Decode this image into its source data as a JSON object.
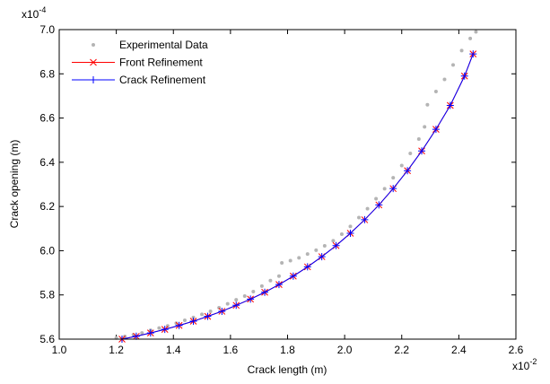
{
  "chart_data": {
    "type": "line",
    "x_label": "Crack length (m)",
    "y_label": "Crack opening (m)",
    "x_multiplier": {
      "base": "x10",
      "exponent": "-2"
    },
    "y_multiplier": {
      "base": "x10",
      "exponent": "-4"
    },
    "xlim": [
      1.0,
      2.6
    ],
    "ylim": [
      5.6,
      7.0
    ],
    "xticks": [
      {
        "value": 1,
        "label": "1.0"
      },
      1.2,
      1.4,
      1.6,
      1.8,
      {
        "value": 2,
        "label": "2.0"
      },
      2.2,
      2.4,
      2.6
    ],
    "yticks": [
      5.6,
      5.8,
      {
        "value": 6,
        "label": "6.0"
      },
      6.2,
      6.4,
      6.6,
      6.8,
      {
        "value": 7,
        "label": "7.0"
      }
    ],
    "legend": "upper left",
    "series": [
      {
        "name": "Experimental Data",
        "color": "#b4b4b4",
        "marker": "dot",
        "line": false,
        "x": [
          1.2,
          1.23,
          1.26,
          1.29,
          1.32,
          1.35,
          1.38,
          1.41,
          1.44,
          1.47,
          1.5,
          1.53,
          1.56,
          1.59,
          1.62,
          1.65,
          1.68,
          1.71,
          1.74,
          1.77,
          1.78,
          1.81,
          1.84,
          1.87,
          1.9,
          1.93,
          1.96,
          1.99,
          2.02,
          2.05,
          2.08,
          2.11,
          2.14,
          2.17,
          2.2,
          2.23,
          2.26,
          2.28,
          2.29,
          2.32,
          2.35,
          2.38,
          2.41,
          2.44,
          2.46
        ],
        "values": [
          5.605,
          5.612,
          5.62,
          5.628,
          5.64,
          5.65,
          5.66,
          5.672,
          5.685,
          5.698,
          5.712,
          5.726,
          5.742,
          5.76,
          5.778,
          5.795,
          5.815,
          5.84,
          5.865,
          5.885,
          5.945,
          5.955,
          5.968,
          5.985,
          6.002,
          6.022,
          6.045,
          6.075,
          6.11,
          6.15,
          6.19,
          6.235,
          6.28,
          6.33,
          6.385,
          6.44,
          6.505,
          6.56,
          6.66,
          6.72,
          6.775,
          6.84,
          6.905,
          6.96,
          6.99
        ]
      },
      {
        "name": "Front Refinement",
        "color": "#ff0000",
        "marker": "x",
        "line": true,
        "x": [
          1.22,
          1.27,
          1.32,
          1.37,
          1.42,
          1.47,
          1.52,
          1.57,
          1.62,
          1.67,
          1.72,
          1.77,
          1.82,
          1.87,
          1.92,
          1.97,
          2.02,
          2.07,
          2.12,
          2.17,
          2.22,
          2.27,
          2.32,
          2.37,
          2.42,
          2.45
        ],
        "values": [
          5.6,
          5.613,
          5.628,
          5.644,
          5.662,
          5.681,
          5.703,
          5.726,
          5.753,
          5.781,
          5.812,
          5.847,
          5.885,
          5.927,
          5.973,
          6.023,
          6.079,
          6.14,
          6.207,
          6.281,
          6.362,
          6.451,
          6.549,
          6.657,
          6.79,
          6.89
        ]
      },
      {
        "name": "Crack Refinement",
        "color": "#0000ff",
        "marker": "+",
        "line": true,
        "x": [
          1.22,
          1.27,
          1.32,
          1.37,
          1.42,
          1.47,
          1.52,
          1.57,
          1.62,
          1.67,
          1.72,
          1.77,
          1.82,
          1.87,
          1.92,
          1.97,
          2.02,
          2.07,
          2.12,
          2.17,
          2.22,
          2.27,
          2.32,
          2.37,
          2.42,
          2.45
        ],
        "values": [
          5.6,
          5.613,
          5.628,
          5.644,
          5.662,
          5.681,
          5.703,
          5.726,
          5.753,
          5.781,
          5.812,
          5.847,
          5.885,
          5.927,
          5.973,
          6.023,
          6.079,
          6.14,
          6.207,
          6.281,
          6.362,
          6.451,
          6.549,
          6.657,
          6.79,
          6.89
        ]
      }
    ]
  }
}
